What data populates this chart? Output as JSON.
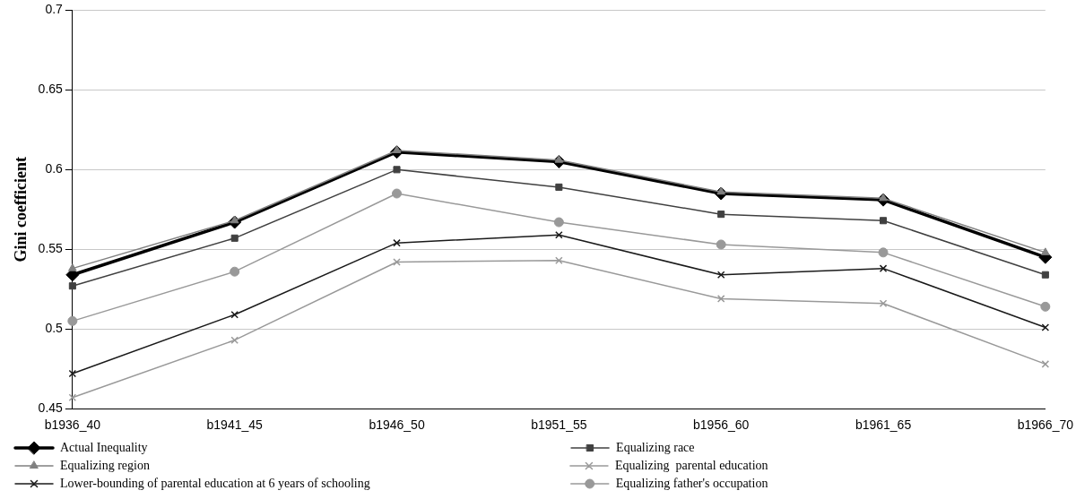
{
  "chart_data": {
    "type": "line",
    "ylabel": "Gini coefficient",
    "categories": [
      "b1936_40",
      "b1941_45",
      "b1946_50",
      "b1951_55",
      "b1956_60",
      "b1961_65",
      "b1966_70"
    ],
    "ylim": [
      0.45,
      0.7
    ],
    "yticks": [
      0.45,
      0.5,
      0.55,
      0.6,
      0.65,
      0.7
    ],
    "grid": "y",
    "legend": "bottom",
    "line_style": "solid",
    "series": [
      {
        "name": "Actual Inequality",
        "color": "#000000",
        "marker": "diamond",
        "values": [
          0.534,
          0.567,
          0.611,
          0.605,
          0.585,
          0.581,
          0.545
        ]
      },
      {
        "name": "Equalizing race",
        "color": "#404040",
        "marker": "square",
        "values": [
          0.527,
          0.557,
          0.6,
          0.589,
          0.572,
          0.568,
          0.534
        ]
      },
      {
        "name": "Equalizing region",
        "color": "#808080",
        "marker": "triangle",
        "values": [
          0.538,
          0.568,
          0.612,
          0.606,
          0.586,
          0.582,
          0.548
        ]
      },
      {
        "name": "Equalizing  parental education",
        "color": "#999999",
        "marker": "cross",
        "values": [
          0.457,
          0.493,
          0.542,
          0.543,
          0.519,
          0.516,
          0.478
        ]
      },
      {
        "name": "Lower-bounding of parental education at 6 years of schooling",
        "color": "#1a1a1a",
        "marker": "cross",
        "values": [
          0.472,
          0.509,
          0.554,
          0.559,
          0.534,
          0.538,
          0.501
        ]
      },
      {
        "name": "Equalizing father's occupation",
        "color": "#999999",
        "marker": "circle",
        "values": [
          0.505,
          0.536,
          0.585,
          0.567,
          0.553,
          0.548,
          0.514
        ]
      }
    ]
  }
}
